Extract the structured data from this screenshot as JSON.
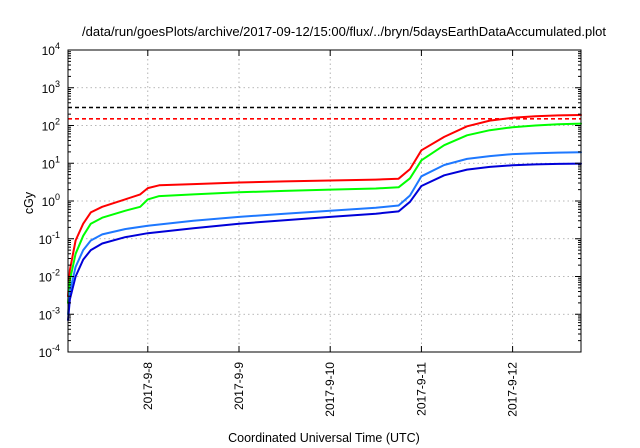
{
  "chart_data": {
    "type": "line",
    "title": "/data/run/goesPlots/archive/2017-09-12/15:00/flux/../bryn/5daysEarthDataAccumulated.plot",
    "xlabel": "Coordinated Universal Time (UTC)",
    "ylabel": "cGy",
    "y_scale": "log",
    "ylim": [
      0.0001,
      10000
    ],
    "xlim": [
      "2017-09-07 03:00",
      "2017-09-12 18:00"
    ],
    "x_tick_labels": [
      "2017-9-8",
      "2017-9-9",
      "2017-9-10",
      "2017-9-11",
      "2017-9-12"
    ],
    "x_tick_dates": [
      "2017-09-08 00:00",
      "2017-09-09 00:00",
      "2017-09-10 00:00",
      "2017-09-11 00:00",
      "2017-09-12 00:00"
    ],
    "y_ticks": [
      {
        "value": 0.0001,
        "base": "10",
        "exp": "-4"
      },
      {
        "value": 0.001,
        "base": "10",
        "exp": "-3"
      },
      {
        "value": 0.01,
        "base": "10",
        "exp": "-2"
      },
      {
        "value": 0.1,
        "base": "10",
        "exp": "-1"
      },
      {
        "value": 1,
        "base": "10",
        "exp": "0"
      },
      {
        "value": 10,
        "base": "10",
        "exp": "1"
      },
      {
        "value": 100,
        "base": "10",
        "exp": "2"
      },
      {
        "value": 1000,
        "base": "10",
        "exp": "3"
      },
      {
        "value": 10000,
        "base": "10",
        "exp": "4"
      }
    ],
    "grid": true,
    "thresholds": [
      {
        "value": 300,
        "color": "#000000"
      },
      {
        "value": 150,
        "color": "#ff0000"
      }
    ],
    "series": [
      {
        "color": "#ff0000",
        "points": [
          [
            "2017-09-07 03:00",
            0.003
          ],
          [
            "2017-09-07 03:30",
            0.015
          ],
          [
            "2017-09-07 05:00",
            0.09
          ],
          [
            "2017-09-07 07:00",
            0.25
          ],
          [
            "2017-09-07 09:00",
            0.5
          ],
          [
            "2017-09-07 12:00",
            0.7
          ],
          [
            "2017-09-07 18:00",
            1.1
          ],
          [
            "2017-09-07 22:00",
            1.5
          ],
          [
            "2017-09-08 00:00",
            2.2
          ],
          [
            "2017-09-08 03:00",
            2.6
          ],
          [
            "2017-09-08 12:00",
            2.8
          ],
          [
            "2017-09-09 00:00",
            3.1
          ],
          [
            "2017-09-09 12:00",
            3.3
          ],
          [
            "2017-09-10 00:00",
            3.5
          ],
          [
            "2017-09-10 12:00",
            3.7
          ],
          [
            "2017-09-10 18:00",
            3.9
          ],
          [
            "2017-09-10 21:00",
            7
          ],
          [
            "2017-09-11 00:00",
            22
          ],
          [
            "2017-09-11 06:00",
            50
          ],
          [
            "2017-09-11 12:00",
            95
          ],
          [
            "2017-09-11 18:00",
            135
          ],
          [
            "2017-09-12 00:00",
            160
          ],
          [
            "2017-09-12 06:00",
            175
          ],
          [
            "2017-09-12 12:00",
            185
          ],
          [
            "2017-09-12 18:00",
            190
          ]
        ]
      },
      {
        "color": "#00ff00",
        "points": [
          [
            "2017-09-07 03:00",
            0.002
          ],
          [
            "2017-09-07 03:30",
            0.008
          ],
          [
            "2017-09-07 05:00",
            0.04
          ],
          [
            "2017-09-07 07:00",
            0.12
          ],
          [
            "2017-09-07 09:00",
            0.25
          ],
          [
            "2017-09-07 12:00",
            0.36
          ],
          [
            "2017-09-07 18:00",
            0.55
          ],
          [
            "2017-09-07 22:00",
            0.7
          ],
          [
            "2017-09-08 00:00",
            1.1
          ],
          [
            "2017-09-08 03:00",
            1.35
          ],
          [
            "2017-09-08 12:00",
            1.5
          ],
          [
            "2017-09-09 00:00",
            1.7
          ],
          [
            "2017-09-09 12:00",
            1.85
          ],
          [
            "2017-09-10 00:00",
            2.0
          ],
          [
            "2017-09-10 12:00",
            2.15
          ],
          [
            "2017-09-10 18:00",
            2.3
          ],
          [
            "2017-09-10 21:00",
            4
          ],
          [
            "2017-09-11 00:00",
            12
          ],
          [
            "2017-09-11 06:00",
            30
          ],
          [
            "2017-09-11 12:00",
            55
          ],
          [
            "2017-09-11 18:00",
            75
          ],
          [
            "2017-09-12 00:00",
            90
          ],
          [
            "2017-09-12 06:00",
            100
          ],
          [
            "2017-09-12 12:00",
            108
          ],
          [
            "2017-09-12 18:00",
            112
          ]
        ]
      },
      {
        "color": "#1e78ff",
        "points": [
          [
            "2017-09-07 03:00",
            0.001
          ],
          [
            "2017-09-07 03:30",
            0.004
          ],
          [
            "2017-09-07 05:00",
            0.018
          ],
          [
            "2017-09-07 07:00",
            0.05
          ],
          [
            "2017-09-07 09:00",
            0.09
          ],
          [
            "2017-09-07 12:00",
            0.13
          ],
          [
            "2017-09-07 18:00",
            0.18
          ],
          [
            "2017-09-08 00:00",
            0.22
          ],
          [
            "2017-09-08 12:00",
            0.3
          ],
          [
            "2017-09-09 00:00",
            0.38
          ],
          [
            "2017-09-09 12:00",
            0.46
          ],
          [
            "2017-09-10 00:00",
            0.55
          ],
          [
            "2017-09-10 12:00",
            0.66
          ],
          [
            "2017-09-10 18:00",
            0.76
          ],
          [
            "2017-09-10 21:00",
            1.4
          ],
          [
            "2017-09-11 00:00",
            4.5
          ],
          [
            "2017-09-11 06:00",
            9
          ],
          [
            "2017-09-11 12:00",
            13
          ],
          [
            "2017-09-11 18:00",
            15.5
          ],
          [
            "2017-09-12 00:00",
            17.5
          ],
          [
            "2017-09-12 06:00",
            18.5
          ],
          [
            "2017-09-12 12:00",
            19.2
          ],
          [
            "2017-09-12 18:00",
            19.6
          ]
        ]
      },
      {
        "color": "#0000d8",
        "points": [
          [
            "2017-09-07 03:00",
            0.0007
          ],
          [
            "2017-09-07 03:30",
            0.0025
          ],
          [
            "2017-09-07 05:00",
            0.01
          ],
          [
            "2017-09-07 07:00",
            0.028
          ],
          [
            "2017-09-07 09:00",
            0.05
          ],
          [
            "2017-09-07 12:00",
            0.075
          ],
          [
            "2017-09-07 18:00",
            0.11
          ],
          [
            "2017-09-08 00:00",
            0.14
          ],
          [
            "2017-09-08 12:00",
            0.19
          ],
          [
            "2017-09-09 00:00",
            0.25
          ],
          [
            "2017-09-09 12:00",
            0.31
          ],
          [
            "2017-09-10 00:00",
            0.38
          ],
          [
            "2017-09-10 12:00",
            0.46
          ],
          [
            "2017-09-10 18:00",
            0.53
          ],
          [
            "2017-09-10 21:00",
            0.95
          ],
          [
            "2017-09-11 00:00",
            2.5
          ],
          [
            "2017-09-11 06:00",
            4.8
          ],
          [
            "2017-09-11 12:00",
            6.8
          ],
          [
            "2017-09-11 18:00",
            8.0
          ],
          [
            "2017-09-12 00:00",
            8.8
          ],
          [
            "2017-09-12 06:00",
            9.3
          ],
          [
            "2017-09-12 12:00",
            9.6
          ],
          [
            "2017-09-12 18:00",
            9.8
          ]
        ]
      }
    ]
  }
}
